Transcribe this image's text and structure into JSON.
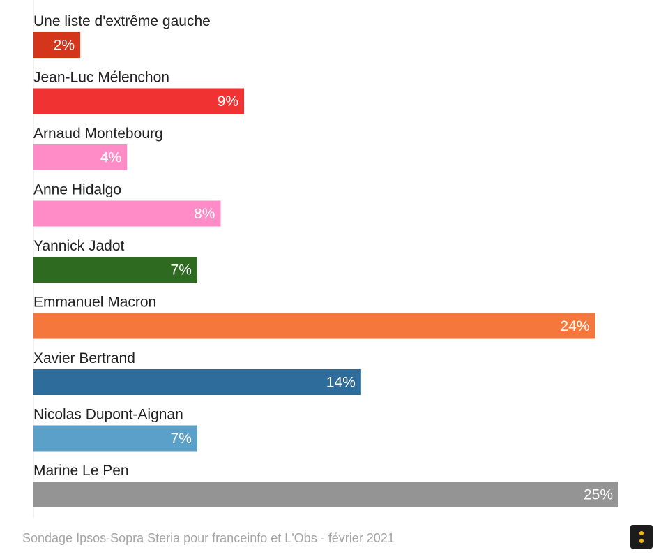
{
  "chart_data": {
    "type": "bar",
    "orientation": "horizontal",
    "categories": [
      "Une liste d'extrême gauche",
      "Jean-Luc Mélenchon",
      "Arnaud Montebourg",
      "Anne Hidalgo",
      "Yannick Jadot",
      "Emmanuel Macron",
      "Xavier Bertrand",
      "Nicolas Dupont-Aignan",
      "Marine Le Pen"
    ],
    "values": [
      2,
      9,
      4,
      8,
      7,
      24,
      14,
      7,
      25
    ],
    "value_labels": [
      "2%",
      "9%",
      "4%",
      "8%",
      "7%",
      "24%",
      "14%",
      "7%",
      "25%"
    ],
    "colors": [
      "#d4361c",
      "#f03232",
      "#ff8cc6",
      "#ff8cc6",
      "#2e6b21",
      "#f5773b",
      "#2e6c9b",
      "#5aa0c8",
      "#949494"
    ],
    "xlim": [
      0,
      25
    ],
    "grid": false,
    "legend": "none",
    "title": "",
    "xlabel": "",
    "ylabel": ""
  },
  "footer": {
    "source": "Sondage Ipsos-Sopra Steria pour franceinfo et L'Obs - février 2021"
  },
  "menu_button": {
    "icon": "vertical-dots-icon",
    "dot_color": "#f5b800",
    "background": "#1c1c1c"
  }
}
